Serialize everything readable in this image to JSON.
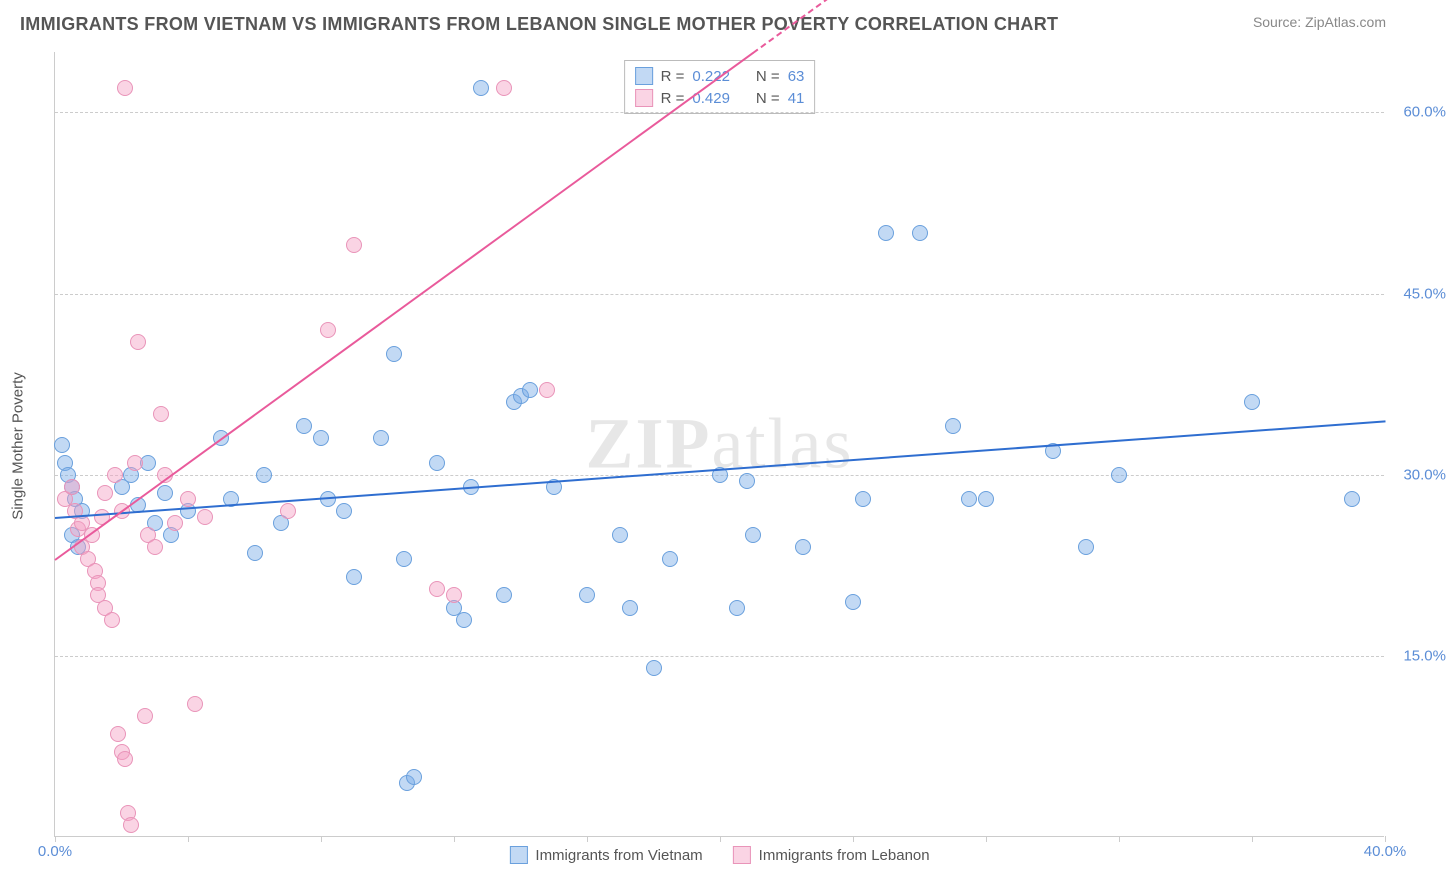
{
  "title": "IMMIGRANTS FROM VIETNAM VS IMMIGRANTS FROM LEBANON SINGLE MOTHER POVERTY CORRELATION CHART",
  "source": "Source: ZipAtlas.com",
  "y_axis_title": "Single Mother Poverty",
  "watermark": "ZIPatlas",
  "chart": {
    "type": "scatter",
    "xlim": [
      0,
      40
    ],
    "ylim": [
      0,
      65
    ],
    "xticks": [
      0,
      4,
      8,
      12,
      16,
      20,
      24,
      28,
      32,
      36,
      40
    ],
    "xtick_labels": {
      "0": "0.0%",
      "40": "40.0%"
    },
    "ygrid": [
      15,
      30,
      45,
      60
    ],
    "ytick_labels": {
      "15": "15.0%",
      "30": "30.0%",
      "45": "45.0%",
      "60": "60.0%"
    },
    "background_color": "#ffffff",
    "grid_color": "#cccccc",
    "point_radius": 8,
    "point_border_width": 1.2
  },
  "series": [
    {
      "name": "Immigrants from Vietnam",
      "fill_color": "rgba(120,170,230,0.45)",
      "border_color": "#6aa0dd",
      "r_value": "0.222",
      "n_value": "63",
      "trend": {
        "x1": 0,
        "y1": 26.5,
        "x2": 40,
        "y2": 34.5,
        "color": "#2f6ed0",
        "width": 2
      },
      "points": [
        [
          0.3,
          31
        ],
        [
          0.4,
          30
        ],
        [
          0.5,
          29
        ],
        [
          0.6,
          28
        ],
        [
          0.8,
          27
        ],
        [
          0.2,
          32.5
        ],
        [
          0.5,
          25
        ],
        [
          0.7,
          24
        ],
        [
          2,
          29
        ],
        [
          2.3,
          30
        ],
        [
          2.5,
          27.5
        ],
        [
          2.8,
          31
        ],
        [
          3,
          26
        ],
        [
          3.3,
          28.5
        ],
        [
          3.5,
          25
        ],
        [
          4,
          27
        ],
        [
          5,
          33
        ],
        [
          5.3,
          28
        ],
        [
          6,
          23.5
        ],
        [
          6.3,
          30
        ],
        [
          6.8,
          26
        ],
        [
          7.5,
          34
        ],
        [
          8,
          33
        ],
        [
          8.2,
          28
        ],
        [
          8.7,
          27
        ],
        [
          9,
          21.5
        ],
        [
          9.8,
          33
        ],
        [
          10.2,
          40
        ],
        [
          10.5,
          23
        ],
        [
          10.6,
          4.5
        ],
        [
          10.8,
          5
        ],
        [
          11.5,
          31
        ],
        [
          12,
          19
        ],
        [
          12.3,
          18
        ],
        [
          12.5,
          29
        ],
        [
          12.8,
          62
        ],
        [
          13.5,
          20
        ],
        [
          13.8,
          36
        ],
        [
          14,
          36.5
        ],
        [
          14.3,
          37
        ],
        [
          15,
          29
        ],
        [
          16,
          20
        ],
        [
          17,
          25
        ],
        [
          17.3,
          19
        ],
        [
          18,
          14
        ],
        [
          18.5,
          23
        ],
        [
          20,
          30
        ],
        [
          20.5,
          19
        ],
        [
          20.8,
          29.5
        ],
        [
          21,
          25
        ],
        [
          22.5,
          24
        ],
        [
          24,
          19.5
        ],
        [
          24.3,
          28
        ],
        [
          25,
          50
        ],
        [
          26,
          50
        ],
        [
          27,
          34
        ],
        [
          27.5,
          28
        ],
        [
          28,
          28
        ],
        [
          30,
          32
        ],
        [
          31,
          24
        ],
        [
          32,
          30
        ],
        [
          36,
          36
        ],
        [
          39,
          28
        ]
      ]
    },
    {
      "name": "Immigrants from Lebanon",
      "fill_color": "rgba(245,160,195,0.45)",
      "border_color": "#e994b9",
      "r_value": "0.429",
      "n_value": "41",
      "trend": {
        "x1": 0,
        "y1": 23,
        "x2": 21,
        "y2": 65,
        "color": "#e95a9b",
        "width": 2
      },
      "trend_dash": {
        "x1": 21,
        "y1": 65,
        "x2": 24,
        "y2": 71,
        "color": "#e95a9b"
      },
      "points": [
        [
          0.3,
          28
        ],
        [
          0.5,
          29
        ],
        [
          0.6,
          27
        ],
        [
          0.7,
          25.5
        ],
        [
          0.8,
          26
        ],
        [
          0.8,
          24
        ],
        [
          1,
          23
        ],
        [
          1.1,
          25
        ],
        [
          1.2,
          22
        ],
        [
          1.3,
          21
        ],
        [
          1.3,
          20
        ],
        [
          1.4,
          26.5
        ],
        [
          1.5,
          19
        ],
        [
          1.5,
          28.5
        ],
        [
          1.7,
          18
        ],
        [
          1.8,
          30
        ],
        [
          1.9,
          8.5
        ],
        [
          2,
          27
        ],
        [
          2,
          7
        ],
        [
          2.1,
          6.5
        ],
        [
          2.2,
          2
        ],
        [
          2.3,
          1
        ],
        [
          2.4,
          31
        ],
        [
          2.5,
          41
        ],
        [
          2.7,
          10
        ],
        [
          2.8,
          25
        ],
        [
          3,
          24
        ],
        [
          3.2,
          35
        ],
        [
          3.3,
          30
        ],
        [
          3.6,
          26
        ],
        [
          4,
          28
        ],
        [
          4.2,
          11
        ],
        [
          4.5,
          26.5
        ],
        [
          2.1,
          62
        ],
        [
          8.2,
          42
        ],
        [
          9,
          49
        ],
        [
          11.5,
          20.5
        ],
        [
          12,
          20
        ],
        [
          13.5,
          62
        ],
        [
          14.8,
          37
        ],
        [
          7,
          27
        ]
      ]
    }
  ],
  "legend": {
    "r_label": "R =",
    "n_label": "N ="
  }
}
